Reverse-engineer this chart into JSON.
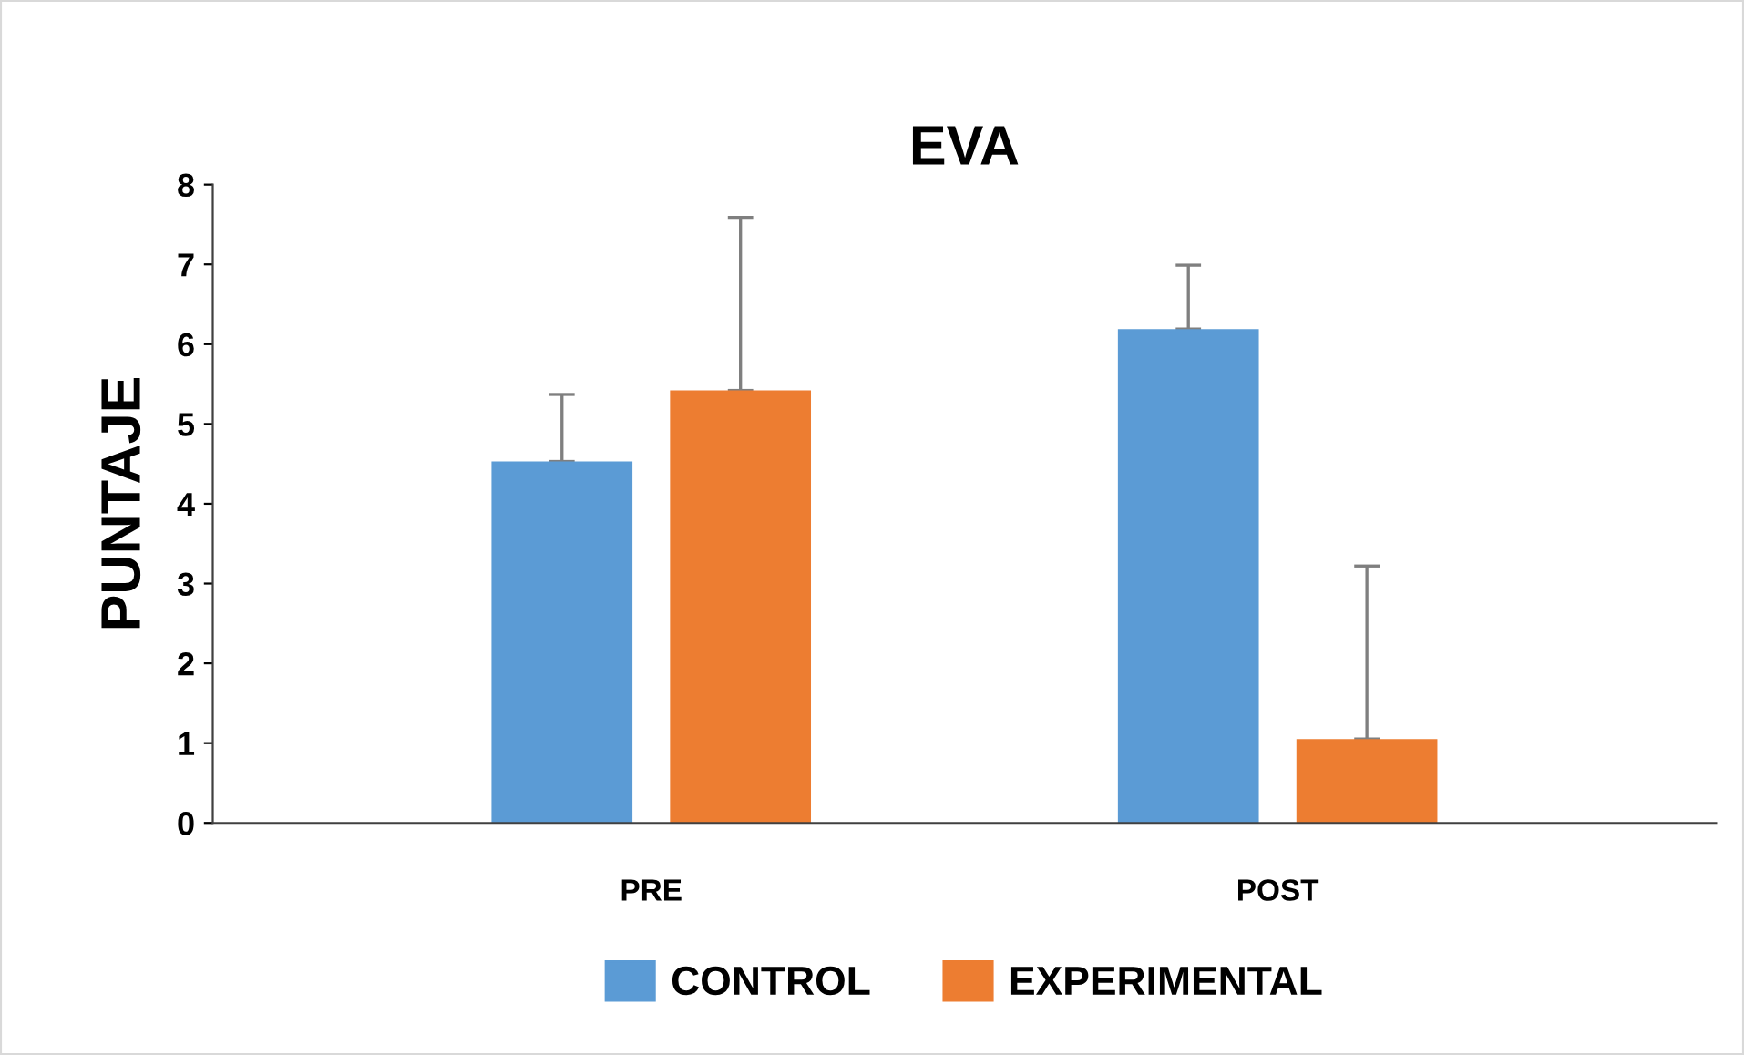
{
  "chart_data": {
    "type": "bar",
    "title": "EVA",
    "ylabel": "PUNTAJE",
    "categories": [
      "PRE",
      "POST"
    ],
    "series": [
      {
        "name": "CONTROL",
        "color": "#5b9bd5",
        "values": [
          4.53,
          6.19
        ],
        "errors": [
          [
            4.53,
            5.37
          ],
          [
            6.19,
            6.99
          ]
        ]
      },
      {
        "name": "EXPERIMENTAL",
        "color": "#ed7d31",
        "values": [
          5.42,
          1.05
        ],
        "errors": [
          [
            5.42,
            7.59
          ],
          [
            1.05,
            3.22
          ]
        ]
      }
    ],
    "ylim": [
      0,
      8
    ],
    "yticks": [
      0,
      1,
      2,
      3,
      4,
      5,
      6,
      7,
      8
    ],
    "grid": false,
    "legend": "bottom"
  }
}
